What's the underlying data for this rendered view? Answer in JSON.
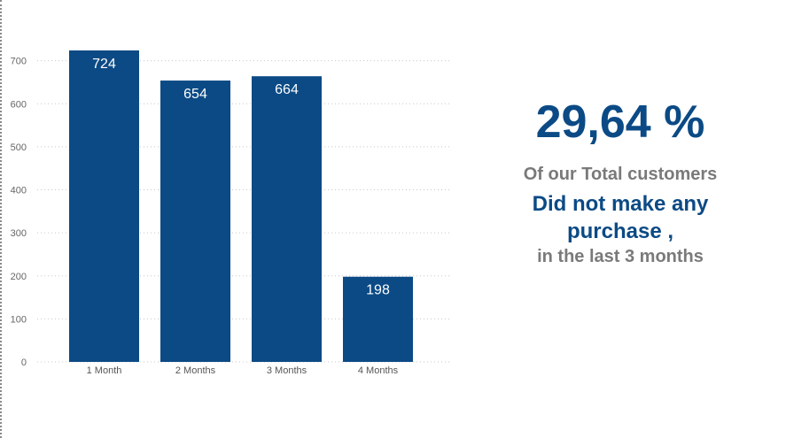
{
  "chart_data": {
    "type": "bar",
    "categories": [
      "1 Month",
      "2 Months",
      "3 Months",
      "4 Months"
    ],
    "values": [
      724,
      654,
      664,
      198
    ],
    "data_labels": [
      "724",
      "654",
      "664",
      "198"
    ],
    "yticks": [
      0,
      100,
      200,
      300,
      400,
      500,
      600,
      700
    ],
    "ylim": [
      0,
      724
    ],
    "grid": "dotted horizontal",
    "bar_color": "#0b4a85",
    "label_color": "#ffffff",
    "title": "",
    "xlabel": "",
    "ylabel": ""
  },
  "kpi": {
    "value": "29,64 %",
    "line1": "Of our Total customers",
    "line2": "Did not make any purchase ,",
    "line3": "in the last 3 months"
  }
}
